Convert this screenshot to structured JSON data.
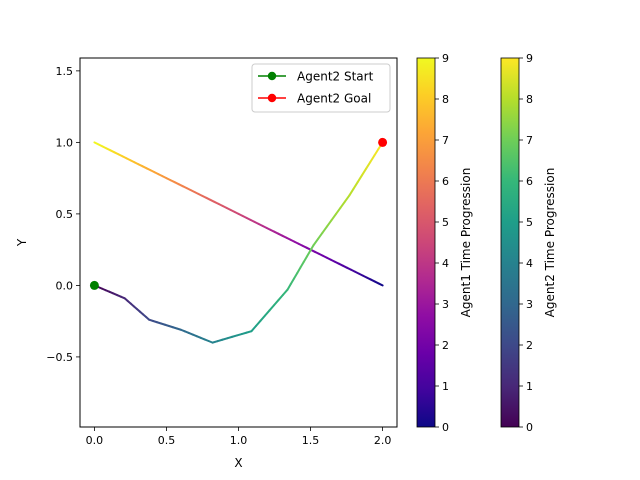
{
  "chart_data": {
    "type": "line",
    "xlabel": "X",
    "ylabel": "Y",
    "xlim": [
      -0.1,
      2.1
    ],
    "ylim": [
      -0.99,
      1.59
    ],
    "xticks": [
      "0.0",
      "0.5",
      "1.0",
      "1.5",
      "2.0"
    ],
    "xtick_values": [
      0,
      0.5,
      1.0,
      1.5,
      2.0
    ],
    "yticks": [
      "−0.5",
      "0.0",
      "0.5",
      "1.0",
      "1.5"
    ],
    "ytick_values": [
      -0.5,
      0,
      0.5,
      1.0,
      1.5
    ],
    "grid": false,
    "legend_position": "top-right",
    "legend": [
      {
        "label": "Agent2 Start",
        "color": "#008000"
      },
      {
        "label": "Agent2 Goal",
        "color": "#ff0000"
      }
    ],
    "series": [
      {
        "colormap": "plasma",
        "x": [
          2.0,
          1.778,
          1.556,
          1.333,
          1.111,
          0.889,
          0.667,
          0.444,
          0.222,
          0.0
        ],
        "y": [
          0.0,
          0.111,
          0.222,
          0.333,
          0.444,
          0.556,
          0.667,
          0.778,
          0.889,
          1.0
        ]
      },
      {
        "colormap": "viridis",
        "x": [
          0.0,
          0.21,
          0.38,
          0.6,
          0.82,
          1.09,
          1.34,
          1.52,
          1.77,
          2.0
        ],
        "y": [
          0.0,
          -0.09,
          -0.24,
          -0.31,
          -0.4,
          -0.32,
          -0.03,
          0.28,
          0.63,
          1.0
        ]
      }
    ],
    "markers": [
      {
        "x": 0.0,
        "y": 0.0,
        "color": "#008000"
      },
      {
        "x": 2.0,
        "y": 1.0,
        "color": "#ff0000"
      }
    ],
    "colorbars": [
      {
        "label": "Agent1 Time Progression",
        "colormap": "plasma",
        "ticks": [
          "0",
          "1",
          "2",
          "3",
          "4",
          "5",
          "6",
          "7",
          "8",
          "9"
        ]
      },
      {
        "label": "Agent2 Time Progression",
        "colormap": "viridis",
        "ticks": [
          "0",
          "1",
          "2",
          "3",
          "4",
          "5",
          "6",
          "7",
          "8",
          "9"
        ]
      }
    ],
    "colormaps": {
      "plasma": [
        "#0d0887",
        "#41049d",
        "#6a00a8",
        "#8f0da4",
        "#b12a90",
        "#cc4778",
        "#e16462",
        "#f2844b",
        "#fca636",
        "#fcce25",
        "#f0f921"
      ],
      "viridis": [
        "#440154",
        "#482878",
        "#3e4989",
        "#31688e",
        "#26828e",
        "#1f9e89",
        "#35b779",
        "#6ece58",
        "#b5de2b",
        "#fde725"
      ]
    }
  }
}
